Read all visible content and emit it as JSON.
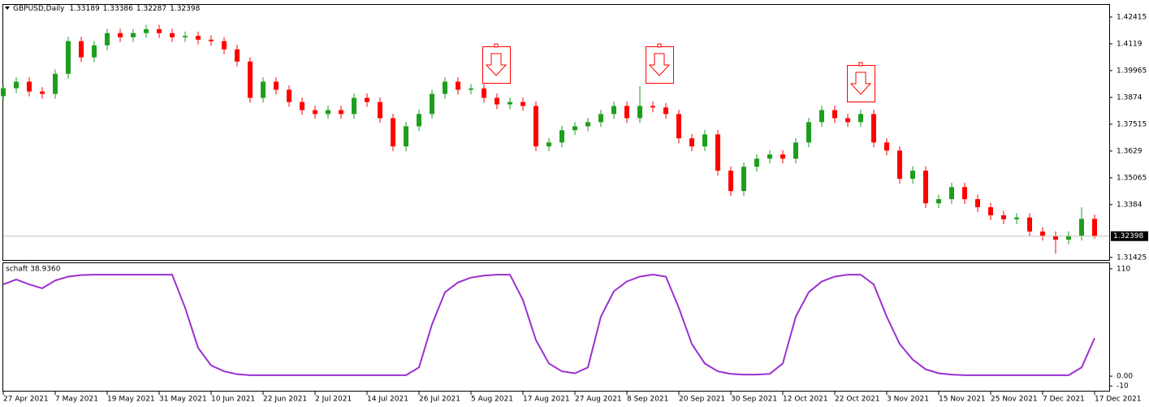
{
  "chart_data": [
    {
      "type": "candlestick",
      "title": "GBPUSD,Daily",
      "up_color": "#1e9e1e",
      "down_color": "#ff0000",
      "categories": [
        "27 Apr 2021",
        null,
        null,
        null,
        "7 May 2021",
        null,
        null,
        null,
        "19 May 2021",
        null,
        null,
        null,
        "31 May 2021",
        null,
        null,
        null,
        "10 Jun 2021",
        null,
        null,
        null,
        "22 Jun 2021",
        null,
        null,
        null,
        "2 Jul 2021",
        null,
        null,
        null,
        "14 Jul 2021",
        null,
        null,
        null,
        "26 Jul 2021",
        null,
        null,
        null,
        "5 Aug 2021",
        null,
        null,
        null,
        "17 Aug 2021",
        null,
        null,
        null,
        "27 Aug 2021",
        null,
        null,
        null,
        "8 Sep 2021",
        null,
        null,
        null,
        "20 Sep 2021",
        null,
        null,
        null,
        "30 Sep 2021",
        null,
        null,
        null,
        "12 Oct 2021",
        null,
        null,
        null,
        "22 Oct 2021",
        null,
        null,
        null,
        "3 Nov 2021",
        null,
        null,
        null,
        "15 Nov 2021",
        null,
        null,
        null,
        "25 Nov 2021",
        null,
        null,
        null,
        "7 Dec 2021",
        null,
        null,
        null,
        "17 Dec 2021"
      ],
      "candles": [
        [
          1.388,
          1.3936,
          1.3858,
          1.3916
        ],
        [
          1.3916,
          1.3966,
          1.3894,
          1.3946
        ],
        [
          1.3946,
          1.3966,
          1.3879,
          1.3901
        ],
        [
          1.3901,
          1.3921,
          1.3868,
          1.389
        ],
        [
          1.389,
          1.4002,
          1.3868,
          1.3982
        ],
        [
          1.3982,
          1.4151,
          1.396,
          1.4131
        ],
        [
          1.4131,
          1.4151,
          1.4035,
          1.4057
        ],
        [
          1.4057,
          1.4132,
          1.4035,
          1.4112
        ],
        [
          1.4112,
          1.4188,
          1.409,
          1.4168
        ],
        [
          1.4168,
          1.4188,
          1.4127,
          1.4149
        ],
        [
          1.4149,
          1.4188,
          1.4127,
          1.4168
        ],
        [
          1.4168,
          1.4206,
          1.4146,
          1.4186
        ],
        [
          1.4186,
          1.4206,
          1.4146,
          1.4168
        ],
        [
          1.4168,
          1.4188,
          1.4127,
          1.4149
        ],
        [
          1.4149,
          1.4175,
          1.4127,
          1.4155
        ],
        [
          1.4155,
          1.4175,
          1.4116,
          1.4138
        ],
        [
          1.4138,
          1.4158,
          1.4109,
          1.4131
        ],
        [
          1.4131,
          1.4151,
          1.4072,
          1.4094
        ],
        [
          1.4094,
          1.4114,
          1.4016,
          1.4038
        ],
        [
          1.4038,
          1.4058,
          1.385,
          1.3872
        ],
        [
          1.3872,
          1.3966,
          1.385,
          1.3946
        ],
        [
          1.3946,
          1.3966,
          1.3887,
          1.3909
        ],
        [
          1.3909,
          1.3929,
          1.3831,
          1.3853
        ],
        [
          1.3853,
          1.3873,
          1.3794,
          1.3816
        ],
        [
          1.3816,
          1.3836,
          1.3776,
          1.3798
        ],
        [
          1.3798,
          1.3836,
          1.3776,
          1.3816
        ],
        [
          1.3816,
          1.3836,
          1.3776,
          1.3798
        ],
        [
          1.3798,
          1.3892,
          1.3776,
          1.3872
        ],
        [
          1.3872,
          1.3892,
          1.3831,
          1.3853
        ],
        [
          1.3853,
          1.3873,
          1.3757,
          1.3779
        ],
        [
          1.3779,
          1.3799,
          1.3628,
          1.365
        ],
        [
          1.365,
          1.3762,
          1.3628,
          1.3742
        ],
        [
          1.3742,
          1.3818,
          1.372,
          1.3798
        ],
        [
          1.3798,
          1.391,
          1.3776,
          1.389
        ],
        [
          1.389,
          1.3966,
          1.3868,
          1.3946
        ],
        [
          1.3946,
          1.3966,
          1.3887,
          1.3909
        ],
        [
          1.3909,
          1.3935,
          1.3887,
          1.3915
        ],
        [
          1.3915,
          1.3935,
          1.385,
          1.3872
        ],
        [
          1.3872,
          1.3892,
          1.382,
          1.3842
        ],
        [
          1.3842,
          1.3873,
          1.382,
          1.3853
        ],
        [
          1.3853,
          1.3873,
          1.3813,
          1.3835
        ],
        [
          1.3835,
          1.3855,
          1.3628,
          1.365
        ],
        [
          1.365,
          1.3688,
          1.3628,
          1.3668
        ],
        [
          1.3668,
          1.3744,
          1.3646,
          1.3724
        ],
        [
          1.3724,
          1.3762,
          1.3702,
          1.3742
        ],
        [
          1.3742,
          1.3781,
          1.372,
          1.3761
        ],
        [
          1.3761,
          1.3818,
          1.3739,
          1.3798
        ],
        [
          1.3798,
          1.3855,
          1.3776,
          1.3835
        ],
        [
          1.3835,
          1.3855,
          1.3757,
          1.3779
        ],
        [
          1.3779,
          1.3925,
          1.3757,
          1.3835
        ],
        [
          1.3835,
          1.3855,
          1.3806,
          1.3828
        ],
        [
          1.3828,
          1.3848,
          1.3776,
          1.3798
        ],
        [
          1.3798,
          1.3818,
          1.3665,
          1.3687
        ],
        [
          1.3687,
          1.3707,
          1.3628,
          1.365
        ],
        [
          1.365,
          1.3725,
          1.3628,
          1.3705
        ],
        [
          1.3705,
          1.3725,
          1.3517,
          1.3539
        ],
        [
          1.3539,
          1.3559,
          1.3424,
          1.3446
        ],
        [
          1.3446,
          1.3577,
          1.3424,
          1.3557
        ],
        [
          1.3557,
          1.3614,
          1.3535,
          1.3594
        ],
        [
          1.3594,
          1.3633,
          1.3572,
          1.3613
        ],
        [
          1.3613,
          1.3633,
          1.3572,
          1.3594
        ],
        [
          1.3594,
          1.3688,
          1.3572,
          1.3668
        ],
        [
          1.3668,
          1.3781,
          1.3646,
          1.3761
        ],
        [
          1.3761,
          1.3836,
          1.3739,
          1.3816
        ],
        [
          1.3816,
          1.3836,
          1.3757,
          1.3779
        ],
        [
          1.3779,
          1.3799,
          1.3739,
          1.3761
        ],
        [
          1.3761,
          1.3818,
          1.3739,
          1.3798
        ],
        [
          1.3798,
          1.3818,
          1.3646,
          1.3668
        ],
        [
          1.3668,
          1.3688,
          1.3609,
          1.3631
        ],
        [
          1.3631,
          1.3651,
          1.348,
          1.3502
        ],
        [
          1.3502,
          1.3559,
          1.348,
          1.3539
        ],
        [
          1.3539,
          1.3559,
          1.3368,
          1.339
        ],
        [
          1.339,
          1.3429,
          1.3368,
          1.3409
        ],
        [
          1.3409,
          1.3484,
          1.3387,
          1.3464
        ],
        [
          1.3464,
          1.3484,
          1.3387,
          1.3409
        ],
        [
          1.3409,
          1.3429,
          1.335,
          1.3372
        ],
        [
          1.3372,
          1.3392,
          1.3313,
          1.3335
        ],
        [
          1.3335,
          1.3355,
          1.3295,
          1.3317
        ],
        [
          1.3317,
          1.3345,
          1.3295,
          1.3325
        ],
        [
          1.3325,
          1.3345,
          1.3239,
          1.3261
        ],
        [
          1.3261,
          1.3281,
          1.322,
          1.3242
        ],
        [
          1.3242,
          1.3262,
          1.316,
          1.3224
        ],
        [
          1.3224,
          1.3262,
          1.3202,
          1.3242
        ],
        [
          1.3242,
          1.3372,
          1.322,
          1.3319
        ],
        [
          1.33189,
          1.33386,
          1.32287,
          1.32398
        ]
      ],
      "ylim": [
        1.3131,
        1.4297
      ],
      "yticks": [
        1.42415,
        1.4119,
        1.39965,
        1.3874,
        1.37515,
        1.3629,
        1.35065,
        1.3384,
        1.31425
      ]
    },
    {
      "type": "line",
      "title": "schaft 38.9360",
      "color": "#9b30d0",
      "values": [
        94,
        99,
        94,
        90,
        98,
        102,
        103.5,
        104,
        104,
        104,
        104,
        104,
        104,
        104,
        70,
        29,
        11,
        5,
        2,
        1,
        1,
        1,
        1,
        1,
        1,
        1,
        1,
        1,
        1,
        1,
        1,
        1,
        9,
        53,
        86,
        96,
        101,
        103,
        104,
        104,
        78,
        37,
        13,
        5,
        3,
        9,
        61,
        87,
        97,
        102,
        104,
        102,
        70,
        33,
        13,
        5,
        2.4,
        1.6,
        1.6,
        2.4,
        13,
        61,
        86,
        97,
        102,
        104,
        104,
        94,
        61,
        33,
        17,
        7,
        3,
        1.6,
        1,
        1,
        1,
        1,
        1,
        1,
        1,
        1,
        1,
        9,
        38.936
      ],
      "ylim": [
        -14.9,
        115.7
      ],
      "yticks": [
        110,
        {
          "value": 0,
          "label": "0.00"
        },
        -10
      ]
    }
  ]
}
